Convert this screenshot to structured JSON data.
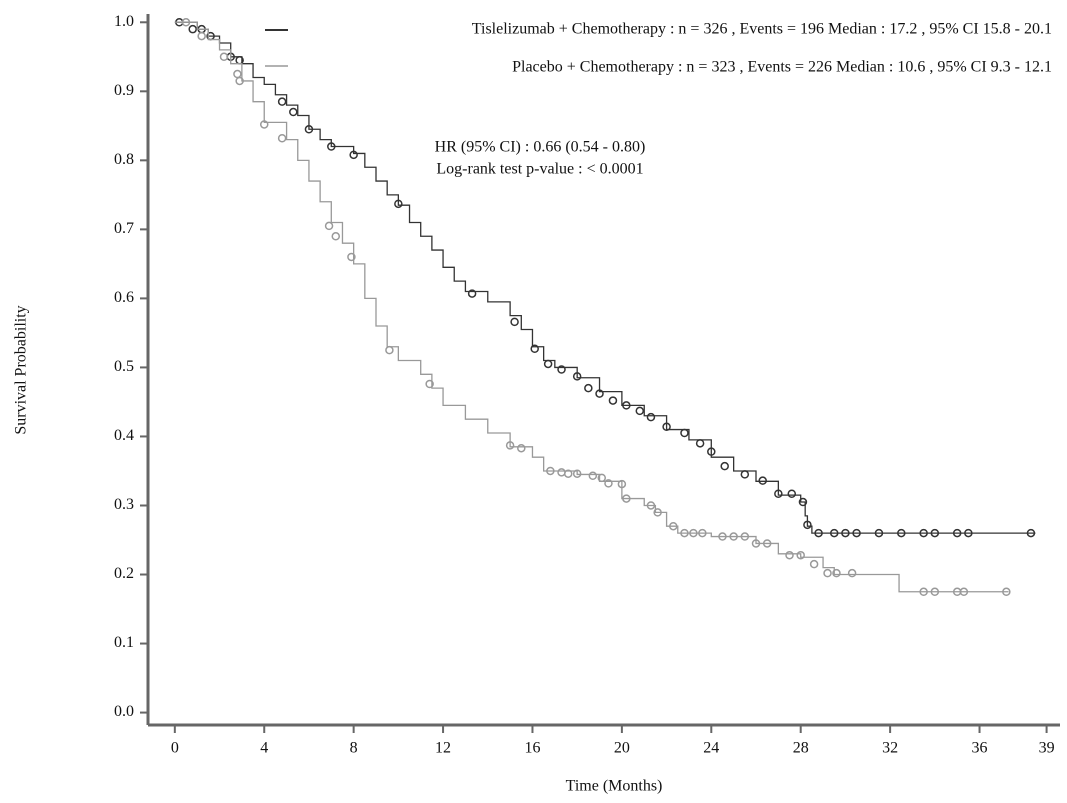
{
  "chart_data": {
    "type": "line",
    "step": "post",
    "xlabel": "Time (Months)",
    "ylabel": "Survival Probability",
    "xlim": [
      -1.2,
      39.6
    ],
    "ylim": [
      -0.018,
      1.012
    ],
    "xticks": [
      0,
      4,
      8,
      12,
      16,
      20,
      24,
      28,
      32,
      36,
      39
    ],
    "yticks": [
      {
        "value": 0,
        "label": "0.0"
      },
      0.1,
      0.2,
      0.3,
      0.4,
      0.5,
      0.6,
      0.7,
      0.8,
      0.9,
      {
        "value": 1,
        "label": "1.0"
      }
    ],
    "annotations": [
      "HR (95% CI) : 0.66 (0.54 - 0.80)",
      "Log-rank test p-value : < 0.0001"
    ],
    "series": [
      {
        "name": "Tislelizumab + Chemotherapy : n = 326 , Events = 196 Median : 17.2 , 95% CI 15.8 - 20.1",
        "color": "#333333",
        "x": [
          0,
          1,
          1.5,
          2,
          2.5,
          3,
          3.5,
          4,
          4.5,
          5,
          5.5,
          6,
          6.5,
          7,
          8,
          8.5,
          9,
          9.5,
          10,
          10.5,
          11,
          11.5,
          12,
          12.5,
          13,
          14,
          15,
          15.5,
          16,
          16.5,
          17,
          18,
          19,
          20,
          21,
          22,
          23,
          24,
          25,
          26,
          27,
          28,
          28.2,
          28.3,
          28.5,
          38.5
        ],
        "values": [
          1,
          0.99,
          0.98,
          0.97,
          0.95,
          0.94,
          0.92,
          0.91,
          0.895,
          0.88,
          0.865,
          0.845,
          0.83,
          0.82,
          0.81,
          0.79,
          0.77,
          0.75,
          0.735,
          0.71,
          0.69,
          0.67,
          0.645,
          0.625,
          0.61,
          0.595,
          0.575,
          0.555,
          0.53,
          0.51,
          0.5,
          0.485,
          0.465,
          0.445,
          0.43,
          0.41,
          0.395,
          0.37,
          0.35,
          0.335,
          0.315,
          0.305,
          0.285,
          0.27,
          0.26,
          0.26
        ],
        "censored_x": [
          0.2,
          0.8,
          1.2,
          1.6,
          2.5,
          2.9,
          4.8,
          5.3,
          6,
          7,
          8,
          10,
          13.3,
          15.2,
          16.1,
          16.7,
          17.3,
          18,
          18.5,
          19,
          19.6,
          20.2,
          20.8,
          21.3,
          22,
          22.8,
          23.5,
          24,
          24.6,
          25.5,
          26.3,
          27,
          27.6,
          28.1,
          28.3,
          28.8,
          29.5,
          30,
          30.5,
          31.5,
          32.5,
          33.5,
          34,
          35,
          35.5,
          38.3
        ],
        "censored_values": [
          1,
          0.99,
          0.99,
          0.98,
          0.95,
          0.945,
          0.885,
          0.87,
          0.845,
          0.82,
          0.808,
          0.737,
          0.607,
          0.566,
          0.527,
          0.505,
          0.497,
          0.487,
          0.47,
          0.462,
          0.452,
          0.445,
          0.437,
          0.428,
          0.414,
          0.405,
          0.39,
          0.378,
          0.357,
          0.345,
          0.336,
          0.317,
          0.317,
          0.305,
          0.272,
          0.26,
          0.26,
          0.26,
          0.26,
          0.26,
          0.26,
          0.26,
          0.26,
          0.26,
          0.26,
          0.26
        ]
      },
      {
        "name": "Placebo + Chemotherapy : n = 323 , Events = 226 Median : 10.6 , 95% CI 9.3 - 12.1",
        "color": "#999999",
        "x": [
          0,
          1,
          1.5,
          2,
          2.5,
          3,
          3.5,
          4,
          5,
          5.5,
          6,
          6.5,
          7,
          7.5,
          8,
          8.5,
          9,
          9.5,
          10,
          11,
          11.5,
          12,
          13,
          14,
          15,
          16,
          16.5,
          18,
          19,
          20,
          21,
          21.5,
          22,
          22.5,
          24,
          26,
          27,
          28,
          29,
          29.5,
          32.3,
          32.4,
          37.3
        ],
        "values": [
          1,
          0.99,
          0.975,
          0.96,
          0.94,
          0.915,
          0.885,
          0.855,
          0.83,
          0.8,
          0.77,
          0.74,
          0.71,
          0.68,
          0.65,
          0.6,
          0.56,
          0.53,
          0.51,
          0.49,
          0.47,
          0.445,
          0.425,
          0.405,
          0.385,
          0.37,
          0.35,
          0.345,
          0.335,
          0.31,
          0.3,
          0.29,
          0.27,
          0.26,
          0.255,
          0.245,
          0.23,
          0.225,
          0.21,
          0.2,
          0.2,
          0.175,
          0.175
        ],
        "censored_x": [
          0.5,
          1.2,
          2.2,
          2.8,
          2.9,
          4,
          4.8,
          6.9,
          7.2,
          7.9,
          9.6,
          11.4,
          15,
          15.5,
          16.8,
          17.3,
          17.6,
          18,
          18.7,
          19.1,
          19.4,
          20,
          20.2,
          21.3,
          21.6,
          22.3,
          22.8,
          23.2,
          23.6,
          24.5,
          25,
          25.5,
          26,
          26.5,
          27.5,
          28,
          28.6,
          29.2,
          29.6,
          30.3,
          33.5,
          34,
          35,
          35.3,
          37.2
        ],
        "censored_values": [
          1,
          0.98,
          0.95,
          0.925,
          0.915,
          0.852,
          0.832,
          0.705,
          0.69,
          0.66,
          0.525,
          0.476,
          0.387,
          0.383,
          0.35,
          0.348,
          0.346,
          0.346,
          0.343,
          0.34,
          0.332,
          0.331,
          0.31,
          0.3,
          0.29,
          0.27,
          0.26,
          0.26,
          0.26,
          0.255,
          0.255,
          0.255,
          0.245,
          0.245,
          0.228,
          0.228,
          0.215,
          0.202,
          0.202,
          0.202,
          0.175,
          0.175,
          0.175,
          0.175,
          0.175
        ]
      }
    ]
  }
}
